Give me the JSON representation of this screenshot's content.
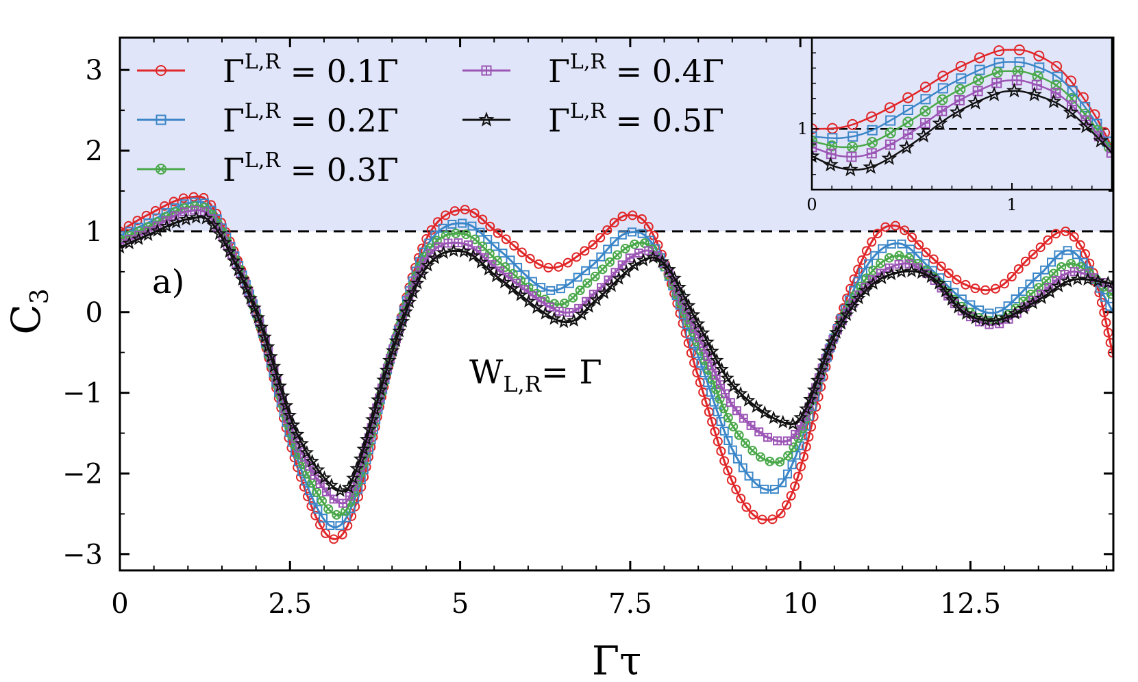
{
  "chart_data": {
    "type": "line",
    "panel_label": "a)",
    "annotation": {
      "main": "W",
      "sub": "L,R",
      "rest": "= Γ"
    },
    "xlabel": "Γτ",
    "ylabel": {
      "main": "C",
      "sub": "3"
    },
    "xlim": [
      0,
      14.6
    ],
    "ylim": [
      -3.2,
      3.4
    ],
    "xticks": [
      {
        "value": 0,
        "label": "0"
      },
      {
        "value": 2.5,
        "label": "2.5"
      },
      {
        "value": 5,
        "label": "5"
      },
      {
        "value": 7.5,
        "label": "7.5"
      },
      {
        "value": 10,
        "label": "10"
      },
      {
        "value": 12.5,
        "label": "12.5"
      }
    ],
    "yticks": [
      {
        "value": -3,
        "label": "−3"
      },
      {
        "value": -2,
        "label": "−2"
      },
      {
        "value": -1,
        "label": "−1"
      },
      {
        "value": 0,
        "label": "0"
      },
      {
        "value": 1,
        "label": "1"
      },
      {
        "value": 2,
        "label": "2"
      },
      {
        "value": 3,
        "label": "3"
      }
    ],
    "reference_line": 1,
    "shaded_region": {
      "from": 1,
      "to": 3.4,
      "color": "#e1e5f9"
    },
    "legend_prefix": {
      "main": "Γ",
      "sup": "L,R"
    },
    "series": [
      {
        "name": "Γ^{L,R} = 0.1Γ",
        "value_label": "= 0.1Γ",
        "color": "#e02628",
        "marker": "circle",
        "x": [
          0,
          0.4,
          1.0,
          1.4,
          2.0,
          2.6,
          3.1,
          3.5,
          4.0,
          4.5,
          5.05,
          5.6,
          6.3,
          6.9,
          7.45,
          7.9,
          8.5,
          9.0,
          9.45,
          9.9,
          10.5,
          11.0,
          11.4,
          11.9,
          12.4,
          12.9,
          13.4,
          13.9,
          14.3,
          14.6
        ],
        "y": [
          1.0,
          1.2,
          1.42,
          1.25,
          0.0,
          -1.9,
          -2.8,
          -2.3,
          -0.5,
          0.9,
          1.27,
          0.95,
          0.55,
          0.8,
          1.2,
          0.85,
          -0.8,
          -2.1,
          -2.57,
          -2.2,
          -0.3,
          0.8,
          1.07,
          0.7,
          0.35,
          0.3,
          0.7,
          1.0,
          0.5,
          -0.55
        ]
      },
      {
        "name": "Γ^{L,R} = 0.2Γ",
        "value_label": "= 0.2Γ",
        "color": "#3b86c8",
        "marker": "square",
        "x": [
          0,
          0.4,
          1.0,
          1.4,
          2.0,
          2.6,
          3.1,
          3.5,
          4.0,
          4.5,
          5.05,
          5.6,
          6.3,
          6.9,
          7.45,
          7.9,
          8.5,
          9.0,
          9.5,
          9.9,
          10.5,
          11.0,
          11.45,
          11.9,
          12.4,
          12.9,
          13.5,
          14.0,
          14.6
        ],
        "y": [
          0.95,
          1.1,
          1.35,
          1.2,
          0.0,
          -1.8,
          -2.65,
          -2.2,
          -0.5,
          0.8,
          1.1,
          0.75,
          0.27,
          0.55,
          0.98,
          0.75,
          -0.55,
          -1.7,
          -2.2,
          -1.85,
          -0.3,
          0.6,
          0.85,
          0.55,
          0.15,
          0.0,
          0.45,
          0.75,
          0.0
        ]
      },
      {
        "name": "Γ^{L,R} = 0.3Γ",
        "value_label": "= 0.3Γ",
        "color": "#4aa84a",
        "marker": "crosscircle",
        "x": [
          0,
          0.4,
          1.0,
          1.4,
          2.0,
          2.6,
          3.15,
          3.5,
          4.0,
          4.5,
          5.05,
          5.6,
          6.4,
          6.9,
          7.5,
          7.9,
          8.5,
          9.0,
          9.55,
          9.95,
          10.5,
          11.0,
          11.45,
          11.9,
          12.4,
          12.9,
          13.5,
          14.0,
          14.6
        ],
        "y": [
          0.9,
          1.05,
          1.3,
          1.15,
          0.0,
          -1.7,
          -2.5,
          -2.1,
          -0.5,
          0.72,
          0.97,
          0.6,
          0.1,
          0.38,
          0.82,
          0.7,
          -0.4,
          -1.4,
          -1.85,
          -1.6,
          -0.3,
          0.45,
          0.7,
          0.48,
          0.05,
          -0.1,
          0.3,
          0.6,
          0.2
        ]
      },
      {
        "name": "Γ^{L,R} = 0.4Γ",
        "value_label": "= 0.4Γ",
        "color": "#9b55b5",
        "marker": "squarecross",
        "x": [
          0,
          0.4,
          1.0,
          1.4,
          2.0,
          2.6,
          3.2,
          3.5,
          4.0,
          4.5,
          5.05,
          5.6,
          6.5,
          7.0,
          7.55,
          7.95,
          8.5,
          9.0,
          9.6,
          10.0,
          10.5,
          11.0,
          11.5,
          11.9,
          12.4,
          12.9,
          13.5,
          14.0,
          14.6
        ],
        "y": [
          0.85,
          1.0,
          1.25,
          1.1,
          0.0,
          -1.6,
          -2.35,
          -2.0,
          -0.5,
          0.65,
          0.85,
          0.5,
          0.0,
          0.25,
          0.7,
          0.65,
          -0.3,
          -1.15,
          -1.58,
          -1.42,
          -0.3,
          0.35,
          0.6,
          0.45,
          0.0,
          -0.15,
          0.2,
          0.5,
          0.3
        ]
      },
      {
        "name": "Γ^{L,R} = 0.5Γ",
        "value_label": "= 0.5Γ",
        "color": "#111111",
        "marker": "star",
        "x": [
          0,
          0.4,
          1.0,
          1.4,
          2.0,
          2.6,
          3.2,
          3.5,
          4.0,
          4.5,
          5.05,
          5.6,
          6.5,
          7.0,
          7.6,
          8.0,
          8.5,
          9.0,
          9.7,
          10.05,
          10.5,
          11.0,
          11.5,
          11.95,
          12.4,
          12.9,
          13.5,
          14.0,
          14.6
        ],
        "y": [
          0.8,
          0.95,
          1.15,
          1.05,
          0.0,
          -1.5,
          -2.2,
          -1.9,
          -0.5,
          0.55,
          0.75,
          0.4,
          -0.12,
          0.15,
          0.6,
          0.6,
          -0.15,
          -0.9,
          -1.35,
          -1.25,
          -0.3,
          0.3,
          0.5,
          0.42,
          0.0,
          -0.1,
          0.15,
          0.4,
          0.35
        ]
      }
    ],
    "inset": {
      "xlim": [
        0,
        1.5
      ],
      "ylim": [
        0.6,
        1.6
      ],
      "xticks": [
        {
          "value": 0,
          "label": "0"
        },
        {
          "value": 1,
          "label": "1"
        }
      ],
      "yticks": [
        {
          "value": 1,
          "label": "1"
        }
      ],
      "reference_line": 1,
      "series": [
        {
          "name": "0.1Γ",
          "x": [
            0,
            0.15,
            0.3,
            0.5,
            0.7,
            0.9,
            1.0,
            1.1,
            1.25,
            1.4,
            1.5
          ],
          "y": [
            1.0,
            1.01,
            1.08,
            1.22,
            1.38,
            1.5,
            1.52,
            1.5,
            1.38,
            1.12,
            0.88
          ]
        },
        {
          "name": "0.2Γ",
          "x": [
            0,
            0.15,
            0.3,
            0.5,
            0.7,
            0.9,
            1.0,
            1.1,
            1.25,
            1.4,
            1.5
          ],
          "y": [
            0.95,
            0.94,
            0.99,
            1.14,
            1.3,
            1.42,
            1.44,
            1.42,
            1.32,
            1.08,
            0.86
          ]
        },
        {
          "name": "0.3Γ",
          "x": [
            0,
            0.15,
            0.3,
            0.5,
            0.7,
            0.9,
            1.0,
            1.1,
            1.25,
            1.4,
            1.5
          ],
          "y": [
            0.92,
            0.88,
            0.91,
            1.06,
            1.23,
            1.36,
            1.38,
            1.36,
            1.26,
            1.04,
            0.85
          ]
        },
        {
          "name": "0.4Γ",
          "x": [
            0,
            0.15,
            0.3,
            0.5,
            0.7,
            0.9,
            1.0,
            1.1,
            1.25,
            1.4,
            1.5
          ],
          "y": [
            0.88,
            0.82,
            0.84,
            0.98,
            1.16,
            1.29,
            1.32,
            1.3,
            1.21,
            1.01,
            0.84
          ]
        },
        {
          "name": "0.5Γ",
          "x": [
            0,
            0.15,
            0.3,
            0.5,
            0.7,
            0.9,
            1.0,
            1.1,
            1.25,
            1.4,
            1.5
          ],
          "y": [
            0.82,
            0.74,
            0.75,
            0.9,
            1.09,
            1.22,
            1.25,
            1.23,
            1.15,
            0.98,
            0.84
          ]
        }
      ]
    }
  }
}
